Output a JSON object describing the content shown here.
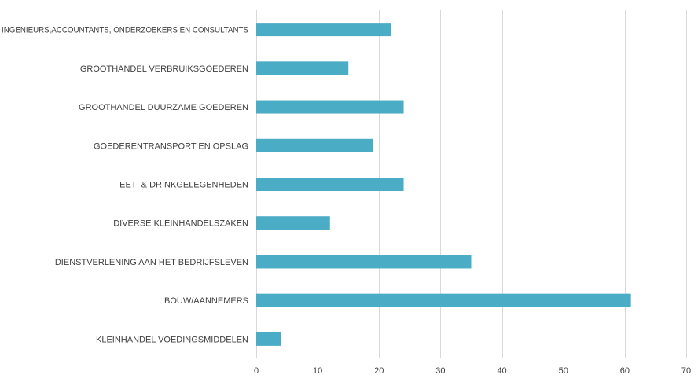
{
  "chart_data": {
    "type": "bar",
    "orientation": "horizontal",
    "categories": [
      "INGENIEURS,ACCOUNTANTS, ONDERZOEKERS EN CONSULTANTS",
      "GROOTHANDEL VERBRUIKSGOEDEREN",
      "GROOTHANDEL DUURZAME GOEDEREN",
      "GOEDERENTRANSPORT EN OPSLAG",
      "EET- & DRINKGELEGENHEDEN",
      "DIVERSE KLEINHANDELSZAKEN",
      "DIENSTVERLENING AAN HET BEDRIJFSLEVEN",
      "BOUW/AANNEMERS",
      "KLEINHANDEL VOEDINGSMIDDELEN"
    ],
    "values": [
      22,
      15,
      24,
      19,
      24,
      12,
      35,
      61,
      4
    ],
    "xlim": [
      0,
      70
    ],
    "xticks": [
      "0",
      "10",
      "20",
      "30",
      "40",
      "50",
      "60",
      "70"
    ],
    "grid": "vertical",
    "bar_color": "#4bacc6",
    "grid_color": "#d9d9d9"
  }
}
